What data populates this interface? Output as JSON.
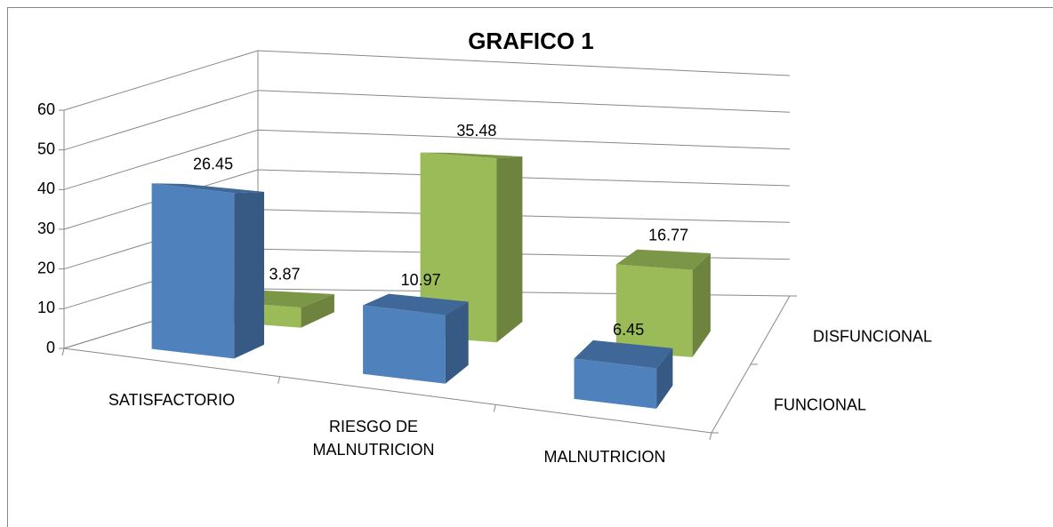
{
  "chart_data": {
    "type": "bar3d",
    "title": "GRAFICO 1",
    "categories": [
      "SATISFACTORIO",
      "RIESGO DE MALNUTRICION",
      "MALNUTRICION"
    ],
    "series": [
      {
        "name": "FUNCIONAL",
        "color": "#4f81bd",
        "values": [
          26.45,
          10.97,
          6.45
        ]
      },
      {
        "name": "DISFUNCIONAL",
        "color": "#9bbb59",
        "values": [
          3.87,
          35.48,
          16.77
        ]
      }
    ],
    "ylim": [
      0,
      60
    ],
    "yticks": [
      0,
      10,
      20,
      30,
      40,
      50,
      60
    ],
    "grid": true
  }
}
